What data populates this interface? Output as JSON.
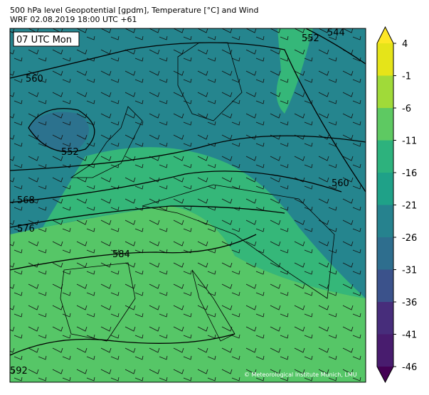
{
  "header": {
    "line1": "500 hPa level Geopotential [gpdm], Temperature [°C] and Wind",
    "line2": "WRF 02.08.2019 18:00 UTC +61"
  },
  "map": {
    "time_label": "07 UTC Mon",
    "contour_labels": [
      "560",
      "552",
      "568",
      "576",
      "584",
      "592",
      "552",
      "544",
      "560"
    ],
    "credit": "© Meteorological Institute Munich, LMU"
  },
  "colorbar": {
    "ticks": [
      4,
      -1,
      -6,
      -11,
      -16,
      -21,
      -26,
      -31,
      -36,
      -41,
      -46
    ],
    "colors": [
      "#e5e419",
      "#a0da39",
      "#5ec962",
      "#2db27d",
      "#1fa188",
      "#26828e",
      "#2e6e8e",
      "#3b528b",
      "#472d7b",
      "#481c6e"
    ],
    "extend_colors": [
      "#fde725",
      "#440154"
    ]
  }
}
